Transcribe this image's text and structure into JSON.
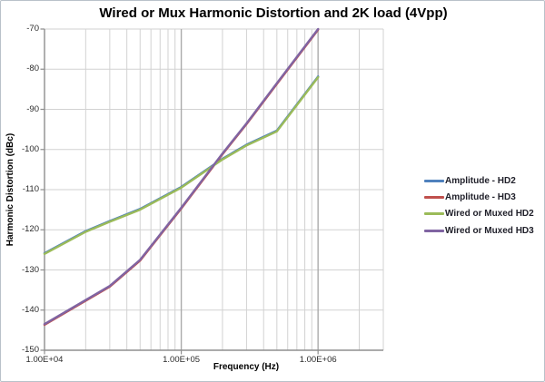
{
  "window": {
    "background": "#ffffff",
    "border_color": "#b9c1c9"
  },
  "chart_data": {
    "type": "line",
    "title": "Wired or Mux Harmonic Distortion and 2K load (4Vpp)",
    "xlabel": "Frequency (Hz)",
    "ylabel": "Harmonic Distortion (dBc)",
    "x_scale": "log",
    "x_range": [
      10000,
      3000000
    ],
    "y_range": [
      -150,
      -70
    ],
    "grid": {
      "horizontal_step": 10,
      "minor_log_verticals": true
    },
    "legend_position": "right",
    "y_tick_labels": [
      "-70",
      "-80",
      "-90",
      "-100",
      "-110",
      "-120",
      "-130",
      "-140",
      "-150"
    ],
    "y_tick_values": [
      -70,
      -80,
      -90,
      -100,
      -110,
      -120,
      -130,
      -140,
      -150
    ],
    "x_tick_labels": [
      "1.00E+04",
      "1.00E+05",
      "1.00E+06"
    ],
    "x_tick_values": [
      10000,
      100000,
      1000000
    ],
    "x": [
      10000,
      20000,
      30000,
      50000,
      100000,
      200000,
      300000,
      500000,
      1000000
    ],
    "series": [
      {
        "name": "Amplitude - HD2",
        "color": "#4F81BD",
        "values": [
          -126,
          -120.5,
          -118,
          -115,
          -109.5,
          -102.5,
          -99,
          -95.5,
          -82
        ]
      },
      {
        "name": "Amplitude - HD3",
        "color": "#C0504D",
        "values": [
          -143.5,
          -137.5,
          -134,
          -127.5,
          -114.5,
          -101,
          -93.5,
          -83.5,
          -70
        ]
      },
      {
        "name": "Wired or Muxed HD2",
        "color": "#9BBB59",
        "values": [
          -126,
          -120.5,
          -118,
          -115,
          -109.5,
          -102.5,
          -99,
          -95.5,
          -82
        ]
      },
      {
        "name": "Wired or Muxed HD3",
        "color": "#8064A2",
        "values": [
          -143.5,
          -137.5,
          -134,
          -127.5,
          -114.5,
          -101,
          -93.5,
          -83.5,
          -70
        ]
      }
    ],
    "colors": {
      "grid_minor": "#d2d2d2",
      "grid_major": "#ababab",
      "axis": "#8f8f8f"
    }
  }
}
